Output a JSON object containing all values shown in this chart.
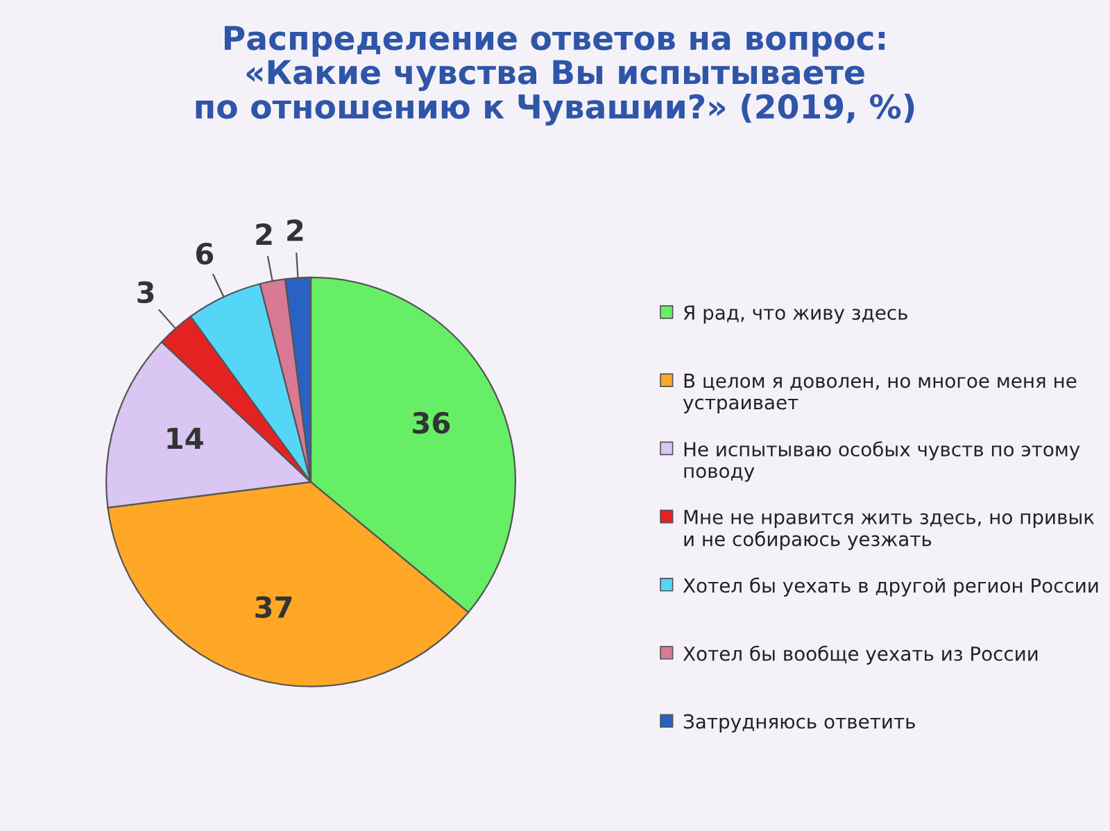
{
  "chart_data": {
    "type": "pie",
    "title": "Распределение ответов на вопрос:\n«Какие чувства Вы испытываете\nпо отношению к Чувашии?» (2019, %)",
    "categories": [
      "Я рад, что живу здесь",
      "В целом я доволен, но многое меня не устраивает",
      "Не испытываю особых чувств по этому поводу",
      "Мне не нравится жить здесь, но привык и не собираюсь уезжать",
      "Хотел бы уехать в другой регион России",
      "Хотел бы вообще уехать из России",
      "Затрудняюсь ответить"
    ],
    "values": [
      36,
      37,
      14,
      3,
      6,
      2,
      2
    ],
    "colors": [
      "#66ee66",
      "#ffa726",
      "#d9c6f2",
      "#e52222",
      "#55d6f7",
      "#d87a95",
      "#2a62c4"
    ],
    "data_labels": true,
    "legend": "right"
  }
}
